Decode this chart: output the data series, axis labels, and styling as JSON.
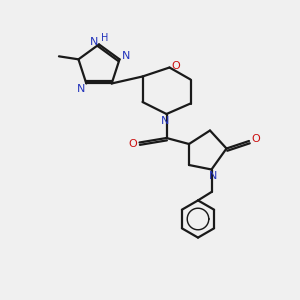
{
  "background_color": "#f0f0f0",
  "bond_color": "#1a1a1a",
  "nitrogen_color": "#2233bb",
  "oxygen_color": "#cc1111",
  "line_width": 1.6,
  "figsize": [
    3.0,
    3.0
  ],
  "dpi": 100,
  "xlim": [
    0,
    10
  ],
  "ylim": [
    0,
    10
  ]
}
